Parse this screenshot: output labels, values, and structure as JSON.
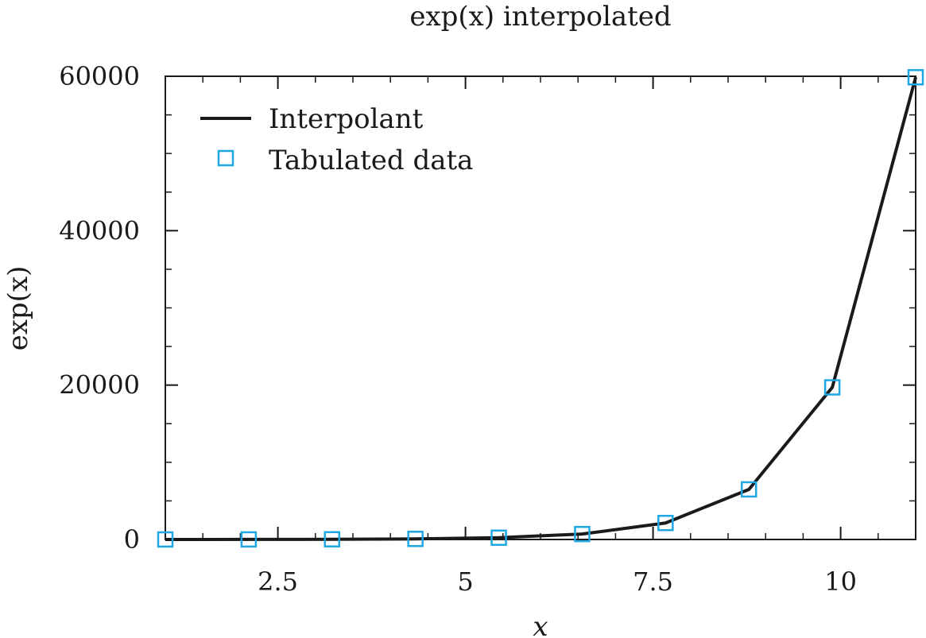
{
  "chart_data": {
    "type": "line",
    "title": "exp(x) interpolated",
    "xlabel": "x",
    "ylabel": "exp(x)",
    "xlim": [
      1,
      11
    ],
    "ylim": [
      0,
      60000
    ],
    "xticks": [
      2.5,
      5,
      7.5,
      10
    ],
    "xtick_labels": [
      "2.5",
      "5",
      "7.5",
      "10"
    ],
    "yticks": [
      0,
      20000,
      40000,
      60000
    ],
    "ytick_labels": [
      "0",
      "20000",
      "40000",
      "60000"
    ],
    "grid": false,
    "legend_position": "top-left",
    "series": [
      {
        "name": "Interpolant",
        "style": "line",
        "color": "#1a1a1a",
        "x": [
          1,
          2.1111,
          3.2222,
          4.3333,
          5.4444,
          6.5556,
          7.6667,
          8.7778,
          9.8889,
          11
        ],
        "y": [
          2.7,
          8.3,
          25.1,
          76.2,
          231.5,
          703.2,
          2136,
          6488,
          19705,
          59874
        ]
      },
      {
        "name": "Tabulated data",
        "style": "markers",
        "marker": "square",
        "color": "#1ea7e1",
        "x": [
          1,
          2.1111,
          3.2222,
          4.3333,
          5.4444,
          6.5556,
          7.6667,
          8.7778,
          9.8889,
          11
        ],
        "y": [
          2.7,
          8.3,
          25.1,
          76.2,
          231.5,
          703.2,
          2136,
          6488,
          19705,
          59874
        ]
      }
    ]
  }
}
